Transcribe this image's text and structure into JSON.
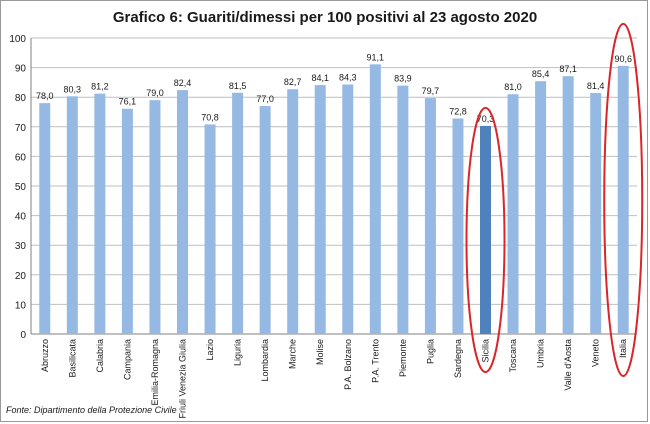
{
  "chart_data": {
    "type": "bar",
    "title": "Grafico 6: Guariti/dimessi per 100 positivi al 23 agosto 2020",
    "categories": [
      "Abruzzo",
      "Basilicata",
      "Calabria",
      "Campania",
      "Emilia-Romagna",
      "Friuli Venezia Giulia",
      "Lazio",
      "Liguria",
      "Lombardia",
      "Marche",
      "Molise",
      "P.A. Bolzano",
      "P.A. Trento",
      "Piemonte",
      "Puglia",
      "Sardegna",
      "Sicilia",
      "Toscana",
      "Umbria",
      "Valle d'Aosta",
      "Veneto",
      "Italia"
    ],
    "values": [
      78.0,
      80.3,
      81.2,
      76.1,
      79.0,
      82.4,
      70.8,
      81.5,
      77.0,
      82.7,
      84.1,
      84.3,
      91.1,
      83.9,
      79.7,
      72.8,
      70.3,
      81.0,
      85.4,
      87.1,
      81.4,
      90.6
    ],
    "data_labels": [
      "78,0",
      "80,3",
      "81,2",
      "76,1",
      "79,0",
      "82,4",
      "70,8",
      "81,5",
      "77,0",
      "82,7",
      "84,1",
      "84,3",
      "91,1",
      "83,9",
      "79,7",
      "72,8",
      "70,3",
      "81,0",
      "85,4",
      "87,1",
      "81,4",
      "90,6"
    ],
    "ylim": [
      0,
      100
    ],
    "yticks": [
      0,
      10,
      20,
      30,
      40,
      50,
      60,
      70,
      80,
      90,
      100
    ],
    "grid": true,
    "highlighted": [
      "Sicilia",
      "Italia"
    ],
    "colors": {
      "bar": "#95b9e3",
      "bar_highlight": "#4f81bd",
      "circle": "#d9262a",
      "grid": "#bfbfbf",
      "text": "#1a1a1a"
    }
  },
  "source_note": "Fonte: Dipartimento della Protezione Civile"
}
